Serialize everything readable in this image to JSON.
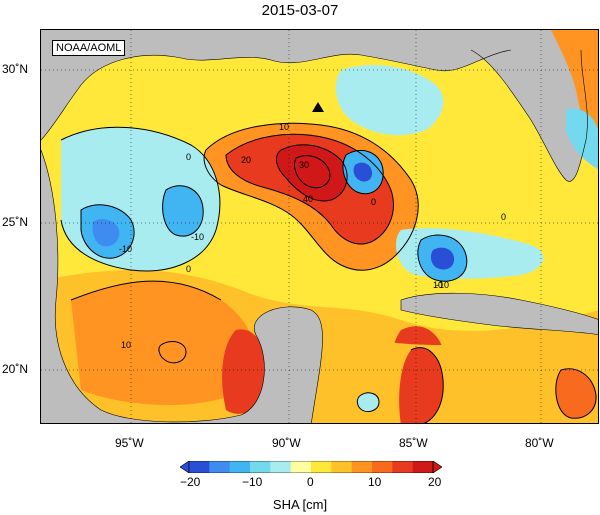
{
  "title": "2015-03-07",
  "source_label": "NOAA/AOML",
  "map": {
    "lon_ticks": [
      "95˚W",
      "90˚W",
      "85˚W",
      "80˚W"
    ],
    "lat_ticks": [
      "30˚N",
      "25˚N",
      "20˚N"
    ],
    "contour_labels": [
      "10",
      "20",
      "30",
      "40",
      "0",
      "-10",
      "10",
      "0",
      "-10",
      "0",
      "10",
      "-10",
      "0"
    ],
    "marker": "buoy-triangle-marker"
  },
  "colorbar": {
    "tick_labels": [
      "−20",
      "−10",
      "0",
      "10",
      "20"
    ],
    "title": "SHA [cm]",
    "colors": [
      "#2a4fd6",
      "#3f8cf0",
      "#41b4f2",
      "#72d9ee",
      "#a9ecf0",
      "#ffffa0",
      "#ffe83a",
      "#ffc12a",
      "#ff9422",
      "#f86a1e",
      "#e83a1e",
      "#d01818"
    ]
  },
  "colors": {
    "land": "#bdbdbd",
    "ocean_low": "#ffe83a"
  }
}
